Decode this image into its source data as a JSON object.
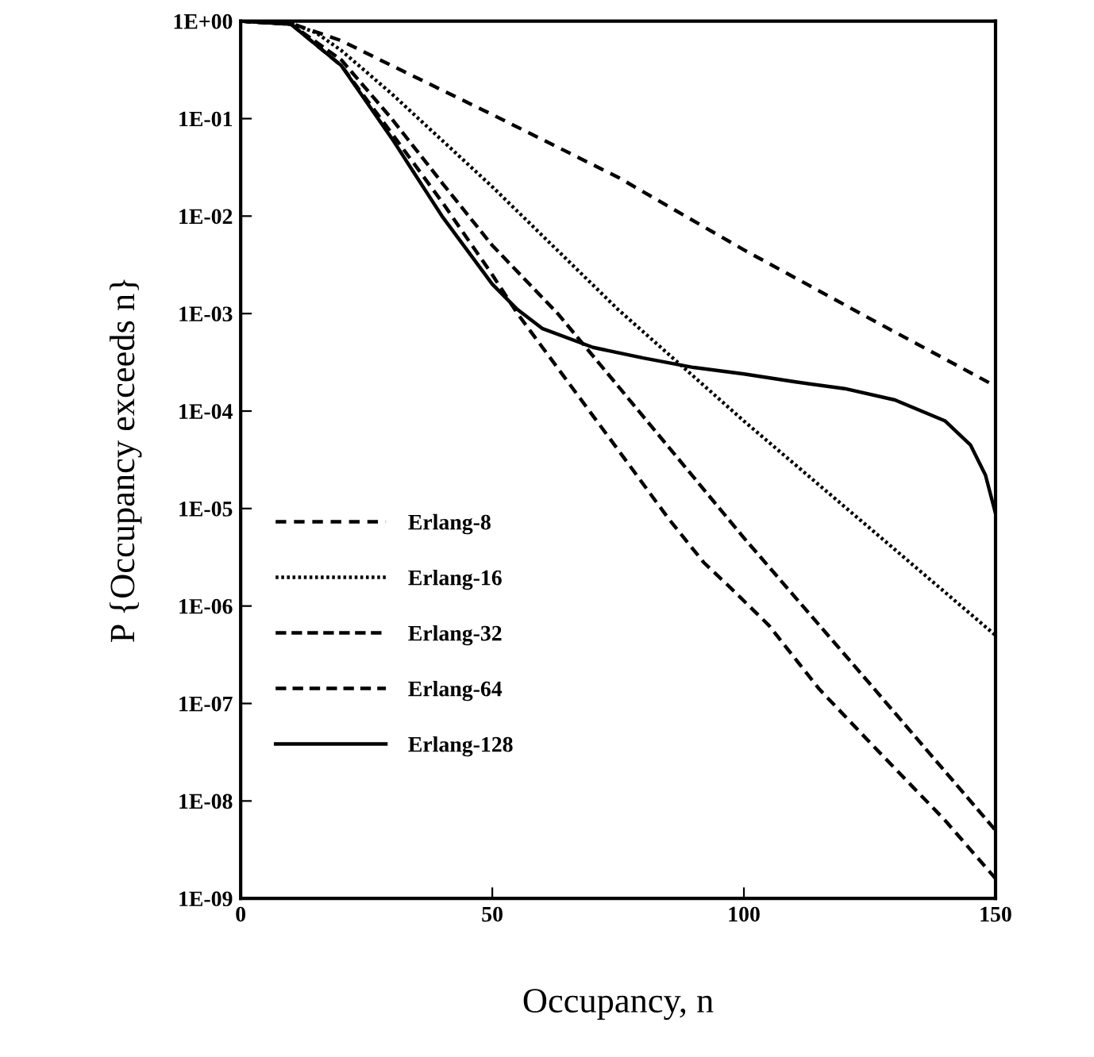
{
  "chart_data": {
    "type": "line",
    "xlabel": "Occupancy, n",
    "ylabel": "P {Occupancy exceeds n}",
    "log": "y",
    "xlim": [
      0,
      150
    ],
    "xticks": [
      0,
      50,
      100,
      150
    ],
    "ylim": [
      1e-09,
      1
    ],
    "yticks": [
      {
        "value": 1,
        "label": "1E+00"
      },
      {
        "value": 0.1,
        "label": "1E-01"
      },
      {
        "value": 0.01,
        "label": "1E-02"
      },
      {
        "value": 0.001,
        "label": "1E-03"
      },
      {
        "value": 0.0001,
        "label": "1E-04"
      },
      {
        "value": 1e-05,
        "label": "1E-05"
      },
      {
        "value": 1e-06,
        "label": "1E-06"
      },
      {
        "value": 1e-07,
        "label": "1E-07"
      },
      {
        "value": 1e-08,
        "label": "1E-08"
      },
      {
        "value": 1e-09,
        "label": "1E-09"
      }
    ],
    "grid": false,
    "legend": "left",
    "marker": "none",
    "series": [
      {
        "name": "Erlang-8",
        "color": "#000000",
        "line_style": "dashed",
        "x": [
          0,
          10,
          20,
          30,
          50,
          75,
          100,
          125,
          150
        ],
        "values": [
          1,
          0.95,
          0.63,
          0.35,
          0.11,
          0.025,
          0.0045,
          0.00089,
          0.00018
        ]
      },
      {
        "name": "Erlang-16",
        "color": "#000000",
        "line_style": "dotted",
        "x": [
          0,
          10,
          15,
          20,
          30,
          50,
          75,
          88,
          100,
          125,
          150
        ],
        "values": [
          1,
          0.95,
          0.76,
          0.5,
          0.18,
          0.02,
          0.0011,
          0.00028,
          7.9e-05,
          6.3e-06,
          5e-07
        ]
      },
      {
        "name": "Erlang-32",
        "color": "#000000",
        "line_style": "dashed",
        "x": [
          0,
          10,
          20,
          30,
          40,
          50,
          63,
          75,
          100,
          125,
          150
        ],
        "values": [
          1,
          0.93,
          0.4,
          0.1,
          0.022,
          0.005,
          0.001,
          0.00018,
          5e-06,
          1.6e-07,
          5e-09
        ]
      },
      {
        "name": "Erlang-64",
        "color": "#000000",
        "line_style": "dashed",
        "x": [
          0,
          10,
          20,
          30,
          40,
          50,
          55,
          65,
          75,
          85,
          92,
          97,
          105,
          115,
          125,
          140,
          150
        ],
        "values": [
          1,
          0.93,
          0.35,
          0.071,
          0.014,
          0.0025,
          0.001,
          0.0002,
          4e-05,
          7.9e-06,
          2.8e-06,
          1.6e-06,
          6.3e-07,
          1.4e-07,
          4e-08,
          6.3e-09,
          1.6e-09
        ]
      },
      {
        "name": "Erlang-128",
        "color": "#000000",
        "line_style": "solid",
        "x": [
          0,
          10,
          20,
          30,
          40,
          50,
          55,
          60,
          70,
          80,
          90,
          100,
          110,
          120,
          130,
          140,
          145,
          148,
          150
        ],
        "values": [
          1,
          0.93,
          0.35,
          0.063,
          0.01,
          0.002,
          0.0011,
          0.0007,
          0.00045,
          0.00035,
          0.00028,
          0.00024,
          0.0002,
          0.00017,
          0.00013,
          7.9e-05,
          4.5e-05,
          2.2e-05,
          8.9e-06
        ]
      }
    ]
  }
}
